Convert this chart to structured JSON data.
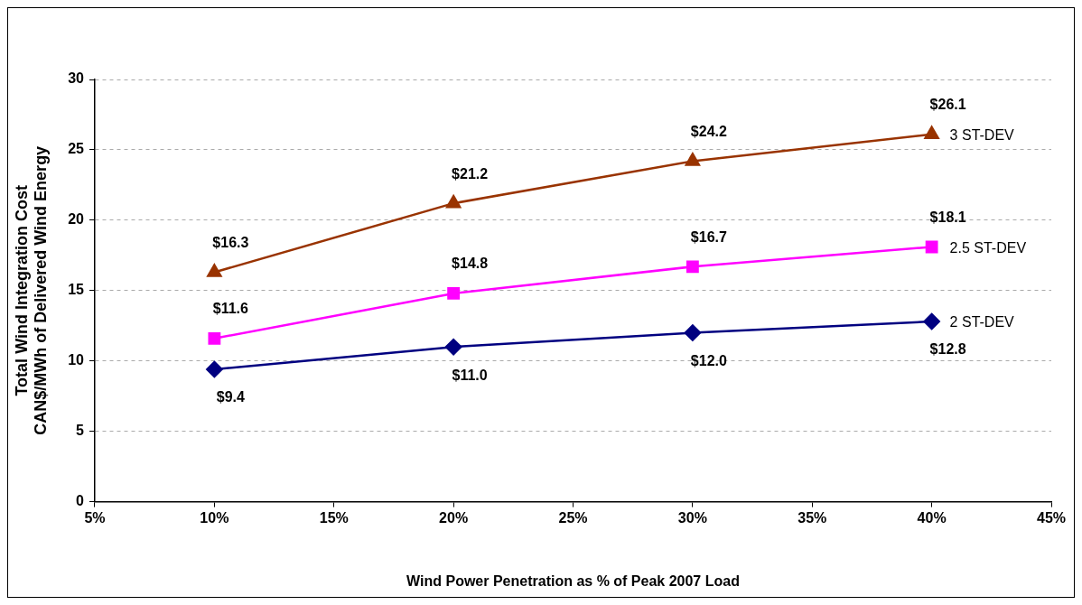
{
  "chart_data": {
    "type": "line",
    "xlabel": "Wind Power Penetration as % of Peak 2007 Load",
    "ylabel": "Total Wind Integration Cost\nCAN$/MWh of Delivered Wind Energy",
    "x": [
      10,
      20,
      30,
      40
    ],
    "series": [
      {
        "name": "3 ST-DEV",
        "color": "#993300",
        "marker": "triangle",
        "values": [
          16.3,
          21.2,
          24.2,
          26.1
        ],
        "value_labels": [
          "$16.3",
          "$21.2",
          "$24.2",
          "$26.1"
        ]
      },
      {
        "name": "2.5 ST-DEV",
        "color": "#ff00ff",
        "marker": "square",
        "values": [
          11.6,
          14.8,
          16.7,
          18.1
        ],
        "value_labels": [
          "$11.6",
          "$14.8",
          "$16.7",
          "$18.1"
        ]
      },
      {
        "name": "2 ST-DEV",
        "color": "#000080",
        "marker": "diamond",
        "values": [
          9.4,
          11.0,
          12.0,
          12.8
        ],
        "value_labels": [
          "$9.4",
          "$11.0",
          "$12.0",
          "$12.8"
        ]
      }
    ],
    "xlim": [
      5,
      45
    ],
    "xticks": [
      {
        "value": 5,
        "label": "5%"
      },
      {
        "value": 10,
        "label": "10%"
      },
      {
        "value": 15,
        "label": "15%"
      },
      {
        "value": 20,
        "label": "20%"
      },
      {
        "value": 25,
        "label": "25%"
      },
      {
        "value": 30,
        "label": "30%"
      },
      {
        "value": 35,
        "label": "35%"
      },
      {
        "value": 40,
        "label": "40%"
      },
      {
        "value": 45,
        "label": "45%"
      }
    ],
    "ylim": [
      0,
      30
    ],
    "yticks": [
      0,
      5,
      10,
      15,
      20,
      25,
      30
    ],
    "grid": "y",
    "line_style": "solid"
  }
}
